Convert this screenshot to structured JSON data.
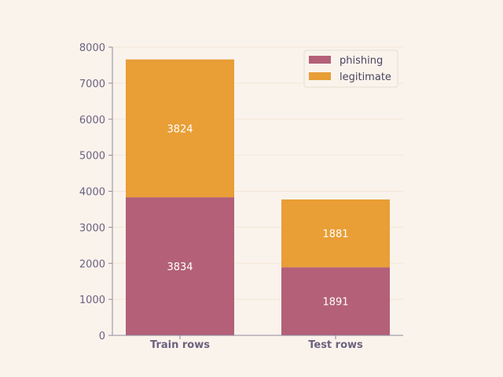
{
  "chart_data": {
    "type": "bar",
    "stacked": true,
    "title": "",
    "xlabel": "",
    "ylabel": "",
    "categories": [
      "Train rows",
      "Test rows"
    ],
    "series": [
      {
        "name": "phishing",
        "values": [
          3834,
          1891
        ],
        "color": "#b36078"
      },
      {
        "name": "legitimate",
        "values": [
          3824,
          1881
        ],
        "color": "#e99e36"
      }
    ],
    "ylim": [
      0,
      8000
    ],
    "yticks": [
      0,
      1000,
      2000,
      3000,
      4000,
      5000,
      6000,
      7000,
      8000
    ],
    "grid": "horizontal",
    "legend_position": "top-right",
    "colors": {
      "background": "#faf3ec",
      "axis": "#8f8aa0",
      "grid": "#f3e6d6",
      "tick_text": "#6b6280",
      "data_label": "#ffffff"
    }
  }
}
